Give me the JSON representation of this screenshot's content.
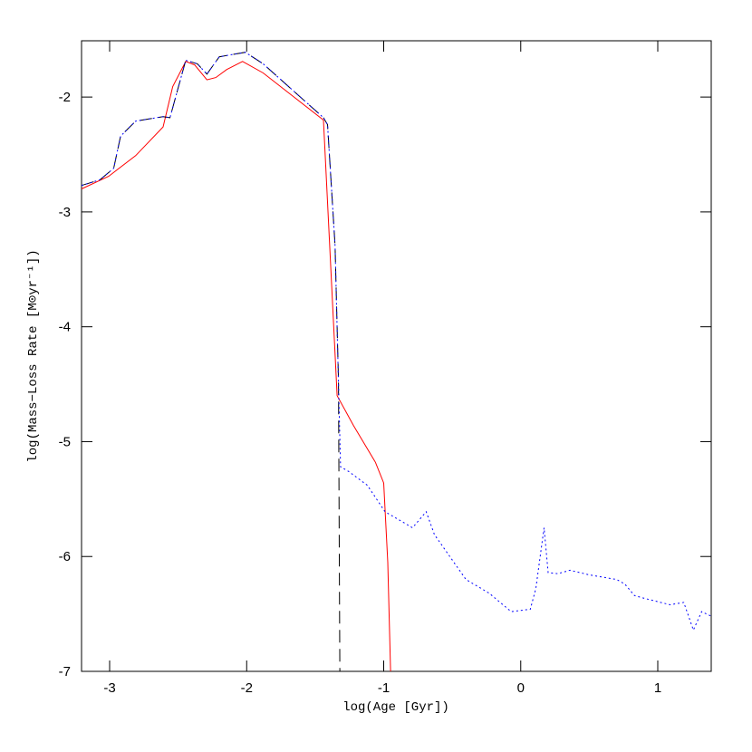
{
  "chart_data": {
    "type": "line",
    "xlabel": "log(Age [Gyr])",
    "ylabel": "log(Mass−Loss Rate [M⊙yr⁻¹])",
    "xlim": [
      -3.205,
      1.39
    ],
    "ylim": [
      -7,
      -1.51
    ],
    "xticks": [
      -3,
      -2,
      -1,
      0,
      1
    ],
    "yticks": [
      -7,
      -6,
      -5,
      -4,
      -3,
      -2
    ],
    "series": [
      {
        "color": "#ff0000",
        "style": "solid",
        "x": [
          -3.205,
          -3.007,
          -2.81,
          -2.61,
          -2.54,
          -2.445,
          -2.38,
          -2.29,
          -2.225,
          -2.145,
          -2.03,
          -1.88,
          -1.44,
          -1.34,
          -1.22,
          -1.06,
          -1.0,
          -0.97,
          -0.95
        ],
        "values": [
          -2.8,
          -2.69,
          -2.51,
          -2.26,
          -1.91,
          -1.69,
          -1.72,
          -1.85,
          -1.83,
          -1.76,
          -1.69,
          -1.79,
          -2.2,
          -4.6,
          -4.86,
          -5.18,
          -5.36,
          -6.05,
          -7.0
        ]
      },
      {
        "color": "#000000",
        "style": "dashed",
        "x": [
          -3.205,
          -3.07,
          -2.97,
          -2.92,
          -2.81,
          -2.61,
          -2.56,
          -2.445,
          -2.36,
          -2.29,
          -2.2,
          -2.01,
          -1.88,
          -1.44,
          -1.41,
          -1.355,
          -1.33,
          -1.32
        ],
        "values": [
          -2.77,
          -2.72,
          -2.62,
          -2.34,
          -2.21,
          -2.17,
          -2.18,
          -1.68,
          -1.71,
          -1.8,
          -1.65,
          -1.61,
          -1.71,
          -2.18,
          -2.24,
          -3.29,
          -4.47,
          -7.0
        ]
      },
      {
        "color": "#0000ff",
        "style": "dotted",
        "x": [
          -3.205,
          -3.07,
          -2.97,
          -2.92,
          -2.81,
          -2.61,
          -2.56,
          -2.445,
          -2.36,
          -2.29,
          -2.2,
          -2.01,
          -1.88,
          -1.44,
          -1.41,
          -1.355,
          -1.315,
          -1.255,
          -1.12,
          -0.99,
          -0.79,
          -0.69,
          -0.63,
          -0.4,
          -0.23,
          -0.07,
          0.07,
          0.11,
          0.17,
          0.2,
          0.27,
          0.36,
          0.5,
          0.7,
          0.76,
          0.83,
          0.89,
          1.09,
          1.19,
          1.26,
          1.32,
          1.39
        ],
        "values": [
          -2.77,
          -2.72,
          -2.62,
          -2.34,
          -2.21,
          -2.17,
          -2.18,
          -1.68,
          -1.71,
          -1.8,
          -1.65,
          -1.61,
          -1.71,
          -2.18,
          -2.24,
          -3.29,
          -5.22,
          -5.26,
          -5.38,
          -5.61,
          -5.75,
          -5.61,
          -5.81,
          -6.2,
          -6.32,
          -6.48,
          -6.46,
          -6.28,
          -5.75,
          -6.14,
          -6.15,
          -6.12,
          -6.16,
          -6.2,
          -6.24,
          -6.34,
          -6.36,
          -6.42,
          -6.4,
          -6.64,
          -6.48,
          -6.52
        ]
      }
    ]
  }
}
